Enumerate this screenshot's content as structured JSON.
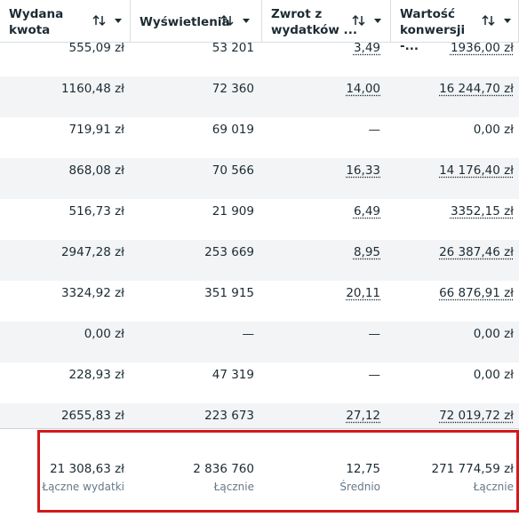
{
  "table": {
    "columns": [
      "Wydana kwota",
      "Wyświetlenia",
      "Zwrot z wydatków ...",
      "Wartość konwersji -..."
    ],
    "rows": [
      [
        "555,09 zł",
        "53 201",
        "3,49",
        "1936,00 zł"
      ],
      [
        "1160,48 zł",
        "72 360",
        "14,00",
        "16 244,70 zł"
      ],
      [
        "719,91 zł",
        "69 019",
        "—",
        "0,00 zł"
      ],
      [
        "868,08 zł",
        "70 566",
        "16,33",
        "14 176,40 zł"
      ],
      [
        "516,73 zł",
        "21 909",
        "6,49",
        "3352,15 zł"
      ],
      [
        "2947,28 zł",
        "253 669",
        "8,95",
        "26 387,46 zł"
      ],
      [
        "3324,92 zł",
        "351 915",
        "20,11",
        "66 876,91 zł"
      ],
      [
        "0,00 zł",
        "—",
        "—",
        "0,00 zł"
      ],
      [
        "228,93 zł",
        "47 319",
        "—",
        "0,00 zł"
      ],
      [
        "2655,83 zł",
        "223 673",
        "27,12",
        "72 019,72 zł"
      ]
    ],
    "footer": {
      "values": [
        "21 308,63 zł",
        "2 836 760",
        "12,75",
        "271 774,59 zł"
      ],
      "labels": [
        "Łączne wydatki",
        "Łącznie",
        "Średnio",
        "Łącznie"
      ]
    }
  }
}
